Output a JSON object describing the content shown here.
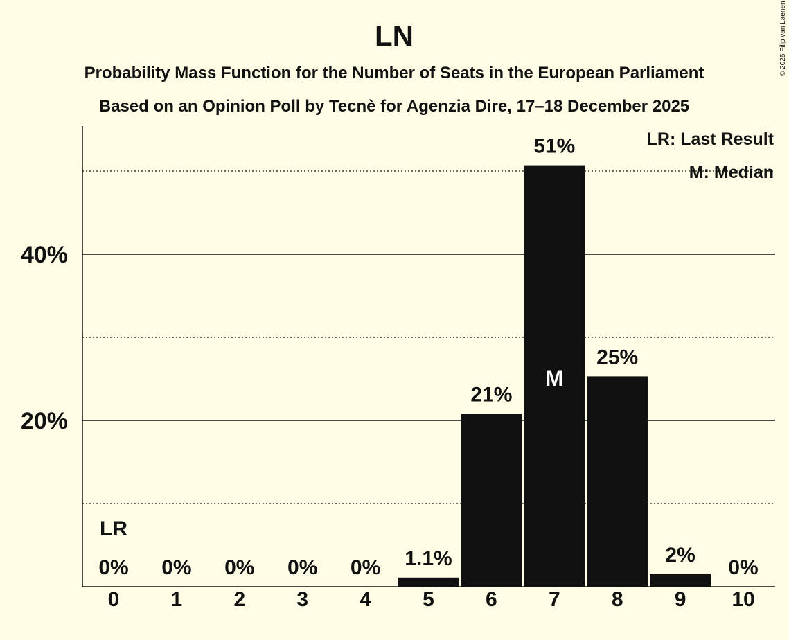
{
  "chart_data": {
    "type": "bar",
    "title": "LN",
    "subtitle": "Probability Mass Function for the Number of Seats in the European Parliament",
    "subtitle2": "Based on an Opinion Poll by Tecnè for Agenzia Dire, 17–18 December 2025",
    "categories": [
      "0",
      "1",
      "2",
      "3",
      "4",
      "5",
      "6",
      "7",
      "8",
      "9",
      "10"
    ],
    "values": [
      0,
      0,
      0,
      0,
      0,
      1.1,
      20.8,
      50.7,
      25.3,
      1.5,
      0
    ],
    "data_labels": [
      "0%",
      "0%",
      "0%",
      "0%",
      "0%",
      "1.1%",
      "21%",
      "51%",
      "25%",
      "2%",
      "0%"
    ],
    "ylim": [
      0,
      55
    ],
    "yticks": [
      {
        "value": 20,
        "label": "20%"
      },
      {
        "value": 40,
        "label": "40%"
      }
    ],
    "minor_gridlines": [
      10,
      30,
      50
    ],
    "last_result_index": 0,
    "last_result_marker": "LR",
    "median_index": 7,
    "median_marker": "M",
    "legend": [
      "LR: Last Result",
      "M: Median"
    ],
    "legend_position": "top-right",
    "bar_color": "#111111",
    "background": "#fffde6"
  },
  "copyright": "© 2025 Filip van Laenen"
}
